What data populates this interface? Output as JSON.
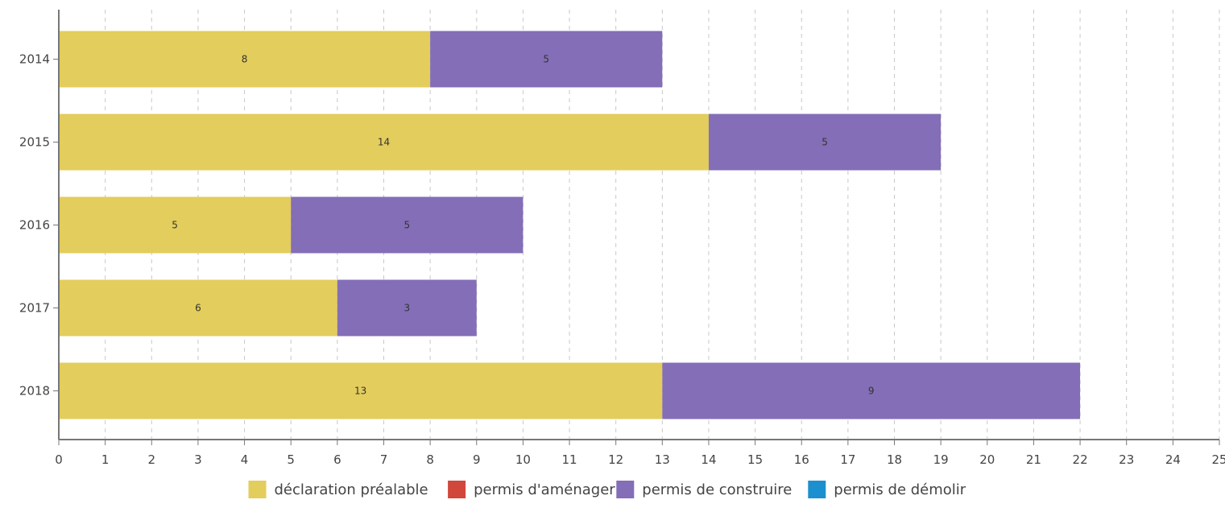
{
  "chart_data": {
    "type": "bar",
    "orientation": "horizontal",
    "stacked": true,
    "categories": [
      "2014",
      "2015",
      "2016",
      "2017",
      "2018"
    ],
    "series": [
      {
        "name": "déclaration préalable",
        "color": "#e3cd5c",
        "values": [
          8,
          14,
          5,
          6,
          13
        ]
      },
      {
        "name": "permis d'aménager",
        "color": "#d1473b",
        "values": [
          0,
          0,
          0,
          0,
          0
        ]
      },
      {
        "name": "permis de construire",
        "color": "#836eb7",
        "values": [
          5,
          5,
          5,
          3,
          9
        ]
      },
      {
        "name": "permis de démolir",
        "color": "#1c8fcf",
        "values": [
          0,
          0,
          0,
          0,
          0
        ]
      }
    ],
    "xlim": [
      0,
      25
    ],
    "xticks": [
      "0",
      "1",
      "2",
      "3",
      "4",
      "5",
      "6",
      "7",
      "8",
      "9",
      "10",
      "11",
      "12",
      "13",
      "14",
      "15",
      "16",
      "17",
      "18",
      "19",
      "20",
      "21",
      "22",
      "23",
      "24",
      "25"
    ],
    "grid": "vertical dashed",
    "legend": "bottom-center",
    "title": "",
    "xlabel": "",
    "ylabel": ""
  }
}
